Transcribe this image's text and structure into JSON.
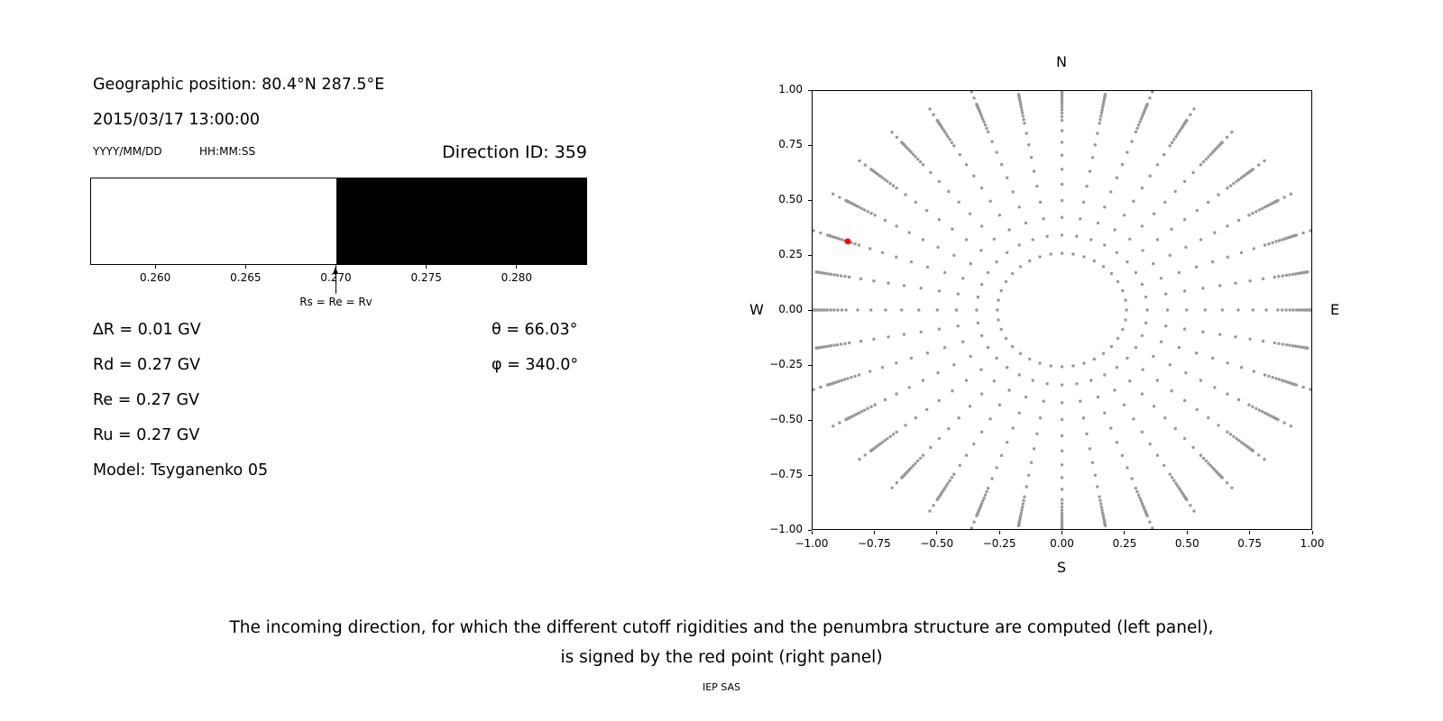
{
  "left_panel": {
    "geo_position": "Geographic position: 80.4°N 287.5°E",
    "datetime": "2015/03/17 13:00:00",
    "date_format_label": "YYYY/MM/DD",
    "time_format_label": "HH:MM:SS",
    "direction_id_label": "Direction ID: 359",
    "values": {
      "delta_r": "∆R = 0.01 GV",
      "rd": "Rd = 0.27 GV",
      "re": "Re = 0.27 GV",
      "ru": "Ru = 0.27 GV",
      "model": "Model: Tsyganenko 05",
      "theta": "θ = 66.03°",
      "phi": "φ = 340.0°"
    }
  },
  "caption": {
    "line1": "The incoming direction, for which the different cutoff rigidities and the penumbra structure are computed (left panel),",
    "line2": "is signed by the red point (right panel)",
    "credit": "IEP SAS"
  },
  "chart_data": [
    {
      "name": "penumbra-structure",
      "type": "bar",
      "title": "",
      "xlabel": "",
      "xlim": [
        0.2564,
        0.2839
      ],
      "xticks": [
        0.26,
        0.265,
        0.27,
        0.275,
        0.28
      ],
      "tick_labels": [
        "0.260",
        "0.265",
        "0.270",
        "0.275",
        "0.280"
      ],
      "regions": [
        {
          "from": 0.2564,
          "to": 0.27,
          "color": "#ffffff",
          "meaning": "allowed"
        },
        {
          "from": 0.27,
          "to": 0.2839,
          "color": "#000000",
          "meaning": "forbidden"
        }
      ],
      "annotation": {
        "x": 0.27,
        "label": "Rs = Re = Rv"
      }
    },
    {
      "name": "incoming-directions",
      "type": "scatter",
      "xlim": [
        -1,
        1
      ],
      "ylim": [
        -1,
        1
      ],
      "grid": false,
      "xticks": [
        "−1.00",
        "−0.75",
        "−0.50",
        "−0.25",
        "0.00",
        "0.25",
        "0.50",
        "0.75",
        "1.00"
      ],
      "yticks": [
        "1.00",
        "0.75",
        "0.50",
        "0.25",
        "0.00",
        "−0.25",
        "−0.50",
        "−0.75",
        "−1.00"
      ],
      "compass": {
        "top": "N",
        "bottom": "S",
        "left": "W",
        "right": "E"
      },
      "dot_color": "#999999",
      "selected_color": "#ff0000",
      "spokes": {
        "azimuth_step_deg": 10,
        "radii": [
          0.259,
          0.342,
          0.423,
          0.5,
          0.574,
          0.643,
          0.707,
          0.766,
          0.819,
          0.866,
          0.883,
          0.899,
          0.914,
          0.927,
          0.94,
          0.951,
          0.961,
          0.97,
          0.978,
          0.985,
          0.99,
          0.995,
          0.998,
          1.0,
          1.03,
          1.06
        ]
      },
      "selected_point": {
        "x": -0.859,
        "y": 0.313
      }
    }
  ]
}
